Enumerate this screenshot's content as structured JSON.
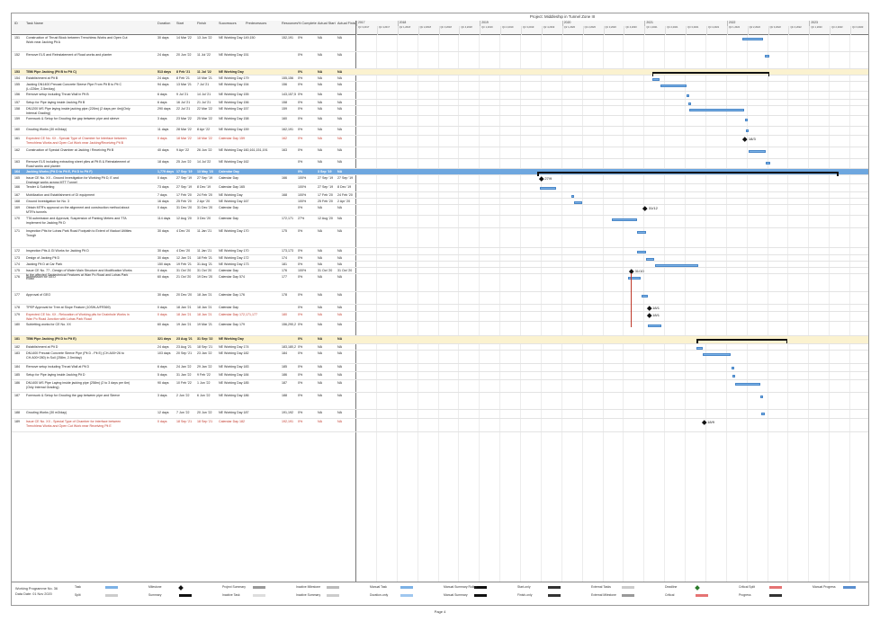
{
  "project_title": "Project: Middleship in Tunnel Zone III",
  "columns": [
    "ID",
    "Task Name",
    "Duration",
    "Start",
    "Finish",
    "Successors",
    "Predecessors",
    "Resources",
    "% Complete",
    "Actual Start",
    "Actual Finish"
  ],
  "timeline_years": [
    "2017",
    "2018",
    "2019",
    "2020",
    "2021",
    "2022",
    "2023"
  ],
  "quarters": [
    "Qtr 3,2017",
    "Qtr 4,2017",
    "Qtr 1,2018",
    "Qtr 2,2018",
    "Qtr 3,2018",
    "Qtr 4,2018",
    "Qtr 1,2019",
    "Qtr 2,2019",
    "Qtr 3,2019",
    "Qtr 4,2019",
    "Qtr 1,2020",
    "Qtr 2,2020",
    "Qtr 3,2020",
    "Qtr 4,2020",
    "Qtr 1,2021",
    "Qtr 2,2021",
    "Qtr 3,2021",
    "Qtr 4,2021",
    "Qtr 1,2022",
    "Qtr 2,2022",
    "Qtr 3,2022",
    "Qtr 4,2022",
    "Qtr 1,2023",
    "Qtr 2,2023",
    "Qtr 3,2023"
  ],
  "rows": [
    {
      "id": "151",
      "name": "Construction of Thrust Block between Trenchless Works and Open Cut Work near Jacking Pit A",
      "dur": "30 days",
      "start": "14 Mar '22",
      "finish": "13 Jun '22",
      "succ": "NE Working Day 149,150",
      "res": "152,191",
      "pct": "0%",
      "as": "NA",
      "af": "NA"
    },
    {
      "id": "152",
      "name": "Remove ELS and Reinstatement of Road works and planter",
      "dur": "24 days",
      "start": "20 Jun '22",
      "finish": "11 Jul '22",
      "succ": "NE Working Day 151",
      "res": "",
      "pct": "0%",
      "as": "NA",
      "af": "NA"
    },
    {
      "id": "153",
      "name": "TBM Pipe Jacking (Pit B to Pit C)",
      "dur": "513 days",
      "start": "8 Feb '21",
      "finish": "11 Jul '22",
      "succ": "NE Working Day",
      "res": "",
      "pct": "0%",
      "as": "NA",
      "af": "NA",
      "kind": "summary"
    },
    {
      "id": "154",
      "name": "Establishment at Pit B",
      "dur": "24 days",
      "start": "8 Feb '21",
      "finish": "10 Mar '21",
      "succ": "NE Working Day 179",
      "res": "155,156",
      "pct": "0%",
      "as": "NA",
      "af": "NA"
    },
    {
      "id": "155",
      "name": "Jacking DN1400 Precast Concrete Sleeve Pipe From Pit B to Pit C (L=226m; 2.5m/day)",
      "dur": "94 days",
      "start": "13 Mar '21",
      "finish": "7 Jul '21",
      "succ": "NE Working Day 154",
      "res": "156",
      "pct": "0%",
      "as": "NA",
      "af": "NA"
    },
    {
      "id": "156",
      "name": "Remove setup including Thrust Wall in Pit B",
      "dur": "6 days",
      "start": "9 Jul '21",
      "finish": "14 Jul '21",
      "succ": "NE Working Day 155",
      "res": "143,157,5",
      "pct": "0%",
      "as": "NA",
      "af": "NA"
    },
    {
      "id": "157",
      "name": "Setup for Pipe laying inside Jacking Pit B",
      "dur": "6 days",
      "start": "16 Jul '21",
      "finish": "21 Jul '21",
      "succ": "NE Working Day 156",
      "res": "158",
      "pct": "0%",
      "as": "NA",
      "af": "NA"
    },
    {
      "id": "158",
      "name": "DN1200 MS Pipe laying inside jacking pipe (226m) (2 days per 4m)(Only Internal Grading)",
      "dur": "290 days",
      "start": "22 Jul '21",
      "finish": "22 Mar '22",
      "succ": "NE Working Day 157",
      "res": "159",
      "pct": "0%",
      "as": "NA",
      "af": "NA"
    },
    {
      "id": "159",
      "name": "Formwork & Setup for Grouting the gap between pipe and sleeve",
      "dur": "3 days",
      "start": "23 Mar '22",
      "finish": "25 Mar '22",
      "succ": "NE Working Day 158",
      "res": "160",
      "pct": "0%",
      "as": "NA",
      "af": "NA"
    },
    {
      "id": "160",
      "name": "Grouting Works (30 m3/day)",
      "dur": "11 days",
      "start": "28 Mar '22",
      "finish": "8 Apr '22",
      "succ": "NE Working Day 159",
      "res": "162,191",
      "pct": "0%",
      "as": "NA",
      "af": "NA"
    },
    {
      "id": "161",
      "name": "Expected CE No. XX - Special Type of Chamber for Interface between Trenchless Works and Open Cut Work near Jacking/Receiving Pit B",
      "dur": "0 days",
      "start": "18 Mar '22",
      "finish": "18 Mar '22",
      "succ": "Calendar Day 159",
      "res": "162",
      "pct": "0%",
      "as": "NA",
      "af": "NA",
      "kind": "red"
    },
    {
      "id": "162",
      "name": "Construction of Special Chamber at Jacking / Receiving Pit B",
      "dur": "40 days",
      "start": "9 Apr '22",
      "finish": "26 Jun '22",
      "succ": "NE Working Day 160,161,151,191",
      "res": "163",
      "pct": "0%",
      "as": "NA",
      "af": "NA"
    },
    {
      "id": "163",
      "name": "Remove ELS including extracting sheet piles at Pit B & Reinstatement of Road works and planter",
      "dur": "18 days",
      "start": "25 Jun '22",
      "finish": "14 Jul '22",
      "succ": "NE Working Day 162",
      "res": "",
      "pct": "0%",
      "as": "NA",
      "af": "NA"
    },
    {
      "id": "164",
      "name": "Jacking Works (Pit D to Pit E, Pit D to Pit F)",
      "dur": "1,779 days",
      "start": "17 Sep '19",
      "finish": "13 May '23",
      "succ": "Calendar Day",
      "res": "",
      "pct": "0%",
      "as": "3 Sep '19",
      "af": "NA",
      "kind": "blue"
    },
    {
      "id": "165",
      "name": "Issue CE No. XX - Ground Investigation for Working Pit D, E and Drainage works across MTT Tunnel",
      "dur": "0 days",
      "start": "27 Sep '19",
      "finish": "27 Sep '19",
      "succ": "Calendar Day",
      "res": "166",
      "pct": "100%",
      "as": "27 Sep '19",
      "af": "27 Sep '19"
    },
    {
      "id": "166",
      "name": "Tender & Subletting",
      "dur": "73 days",
      "start": "27 Sep '19",
      "finish": "8 Dec '19",
      "succ": "Calendar Day 165",
      "res": "",
      "pct": "100%",
      "as": "27 Sep '19",
      "af": "8 Dec '19"
    },
    {
      "id": "167",
      "name": "Mobilization and Establishment of GI equipment",
      "dur": "7 days",
      "start": "17 Feb '20",
      "finish": "24 Feb '20",
      "succ": "NE Working Day",
      "res": "168",
      "pct": "100%",
      "as": "17 Feb '20",
      "af": "24 Feb '20"
    },
    {
      "id": "168",
      "name": "Ground Investigation for No. 3",
      "dur": "16 days",
      "start": "25 Feb '20",
      "finish": "2 Apr '20",
      "succ": "NE Working Day 167",
      "res": "",
      "pct": "100%",
      "as": "25 Feb '20",
      "af": "2 Apr '20"
    },
    {
      "id": "169",
      "name": "Obtain MTR's approval on the alignment and construction method about MTR's tunnels",
      "dur": "0 days",
      "start": "31 Dec '20",
      "finish": "31 Dec '20",
      "succ": "Calendar Day",
      "res": "",
      "pct": "0%",
      "as": "NA",
      "af": "NA"
    },
    {
      "id": "170",
      "name": "TTA submission and Approval, Suspension of Parking Meters and TTA implement for Jacking Pit D",
      "dur": "114 days",
      "start": "12 Aug '20",
      "finish": "3 Dec '20",
      "succ": "Calendar Day",
      "res": "172,171",
      "pct": "27%",
      "as": "12 Aug '20",
      "af": "NA"
    },
    {
      "id": "171",
      "name": "Inspection Pits for Lohas Park Road Footpath to Extent of Viaduct Utilities Trough",
      "dur": "30 days",
      "start": "4 Dec '20",
      "finish": "11 Jan '21",
      "succ": "NE Working Day 170",
      "res": "175",
      "pct": "0%",
      "as": "NA",
      "af": "NA"
    },
    {
      "id": "172",
      "name": "Inspection Pits & GI Works for Jacking Pit D",
      "dur": "30 days",
      "start": "4 Dec '20",
      "finish": "11 Jan '21",
      "succ": "NE Working Day 170",
      "res": "173,173",
      "pct": "0%",
      "as": "NA",
      "af": "NA"
    },
    {
      "id": "173",
      "name": "Design of Jacking Pit D",
      "dur": "30 days",
      "start": "12 Jan '21",
      "finish": "18 Feb '21",
      "succ": "NE Working Day 172",
      "res": "174",
      "pct": "0%",
      "as": "NA",
      "af": "NA"
    },
    {
      "id": "174",
      "name": "Jacking Pit D at Car Park",
      "dur": "150 days",
      "start": "19 Feb '21",
      "finish": "31 Aug '21",
      "succ": "NE Working Day 173",
      "res": "181",
      "pct": "0%",
      "as": "NA",
      "af": "NA"
    },
    {
      "id": "175",
      "name": "Issue CE No. 77 - Design of Water Main Structure and Modification Works to the affected Geotechnical Features at Wan Po Road and Lohas Park Road",
      "dur": "0 days",
      "start": "31 Oct '20",
      "finish": "31 Oct '20",
      "succ": "Calendar Day",
      "res": "176",
      "pct": "100%",
      "as": "31 Oct '20",
      "af": "31 Oct '20"
    },
    {
      "id": "176",
      "name": "Submission for GEO",
      "dur": "60 days",
      "start": "21 Oct '20",
      "finish": "19 Dec '20",
      "succ": "Calendar Day 574",
      "res": "177",
      "pct": "0%",
      "as": "NA",
      "af": "NA"
    },
    {
      "id": "177",
      "name": "Approval of GEO",
      "dur": "30 days",
      "start": "20 Dec '20",
      "finish": "18 Jan '21",
      "succ": "Calendar Day 176",
      "res": "178",
      "pct": "0%",
      "as": "NA",
      "af": "NA"
    },
    {
      "id": "178",
      "name": "TPEP Approval for Tree at Slope Feature (10SW-A/FR369)",
      "dur": "0 days",
      "start": "18 Jan '21",
      "finish": "18 Jan '21",
      "succ": "Calendar Day",
      "res": "",
      "pct": "0%",
      "as": "NA",
      "af": "NA"
    },
    {
      "id": "179",
      "name": "Expected CE No. XX - Relocation of Working pits for Drainhole Works in Wan Po Road Junction with Lohas Park Road",
      "dur": "0 days",
      "start": "18 Jan '21",
      "finish": "18 Jan '21",
      "succ": "Calendar Day 172,171,177",
      "res": "180",
      "pct": "0%",
      "as": "NA",
      "af": "NA",
      "kind": "red"
    },
    {
      "id": "180",
      "name": "Subletting works for CE No. XX",
      "dur": "60 days",
      "start": "19 Jan '21",
      "finish": "19 Mar '21",
      "succ": "Calendar Day 179",
      "res": "156,290,2",
      "pct": "0%",
      "as": "NA",
      "af": "NA"
    },
    {
      "id": "181",
      "name": "TBM Pipe Jacking (Pit D to Pit E)",
      "dur": "321 days",
      "start": "23 Aug '21",
      "finish": "31 Sep '22",
      "succ": "NE Working Day",
      "res": "",
      "pct": "0%",
      "as": "NA",
      "af": "NA",
      "kind": "summary"
    },
    {
      "id": "182",
      "name": "Establishment at Pit D",
      "dur": "24 days",
      "start": "23 Aug '21",
      "finish": "18 Sep '21",
      "succ": "NE Working Day 174",
      "res": "183,180,2",
      "pct": "0%",
      "as": "NA",
      "af": "NA"
    },
    {
      "id": "183",
      "name": "DN1400 Precast Concrete Sleeve Pipe (Pit D - Pit E) (CH.A00+26 to CH.A00+280) in Soil (258m, 2.5m/day)",
      "dur": "103 days",
      "start": "20 Sep '21",
      "finish": "23 Jan '22",
      "succ": "NE Working Day 182",
      "res": "184",
      "pct": "0%",
      "as": "NA",
      "af": "NA"
    },
    {
      "id": "184",
      "name": "Remove setup including Thrust Wall at Pit D",
      "dur": "6 days",
      "start": "24 Jan '22",
      "finish": "29 Jan '22",
      "succ": "NE Working Day 183",
      "res": "185",
      "pct": "0%",
      "as": "NA",
      "af": "NA"
    },
    {
      "id": "185",
      "name": "Setup for Pipe laying inside Jacking Pit D",
      "dur": "5 days",
      "start": "31 Jan '22",
      "finish": "9 Feb '22",
      "succ": "NE Working Day 184",
      "res": "186",
      "pct": "0%",
      "as": "NA",
      "af": "NA"
    },
    {
      "id": "186",
      "name": "DN1400 MS Pipe Laying inside jacking pipe (258m) (2 to 3 days per 6m)(Only Internal Grading)",
      "dur": "90 days",
      "start": "10 Feb '22",
      "finish": "1 Jun '22",
      "succ": "NE Working Day 185",
      "res": "187",
      "pct": "0%",
      "as": "NA",
      "af": "NA"
    },
    {
      "id": "187",
      "name": "Formwork & Setup for Grouting the gap between pipe and Sleeve",
      "dur": "3 days",
      "start": "2 Jun '22",
      "finish": "6 Jun '22",
      "succ": "NE Working Day 186",
      "res": "188",
      "pct": "0%",
      "as": "NA",
      "af": "NA"
    },
    {
      "id": "188",
      "name": "Grouting Works (30 m3/day)",
      "dur": "12 days",
      "start": "7 Jun '22",
      "finish": "20 Jun '22",
      "succ": "NE Working Day 187",
      "res": "191,192",
      "pct": "0%",
      "as": "NA",
      "af": "NA"
    },
    {
      "id": "189",
      "name": "Issue CE No. XX - Special Type of Chamber for Interface between Trenchless Works and Open Cut Work near Receiving Pit E",
      "dur": "0 days",
      "start": "18 Sep '21",
      "finish": "18 Sep '21",
      "succ": "Calendar Day 182",
      "res": "192,191",
      "pct": "0%",
      "as": "NA",
      "af": "NA",
      "kind": "red"
    }
  ],
  "milestones": [
    {
      "row": "161",
      "label": "18/3"
    },
    {
      "row": "165",
      "label": "27/9"
    },
    {
      "row": "169",
      "label": "31/12"
    },
    {
      "row": "175",
      "label": "31/10"
    },
    {
      "row": "178",
      "label": "18/1"
    },
    {
      "row": "179",
      "label": "18/1"
    },
    {
      "row": "189",
      "label": "18/9"
    }
  ],
  "footer": {
    "program": "Working Programme No. 36",
    "data_date": "Data Date: 01 Nov 2020",
    "legend": [
      "Task",
      "Split",
      "Milestone",
      "Summary",
      "Project Summary",
      "Inactive Task",
      "Inactive Milestone",
      "Inactive Summary",
      "Manual Task",
      "Duration-only",
      "Manual Summary Rollup",
      "Manual Summary",
      "Start-only",
      "Finish-only",
      "External Tasks",
      "External Milestone",
      "Deadline",
      "Critical",
      "Critical Split",
      "Progress",
      "Manual Progress"
    ]
  },
  "page_label": "Page 4",
  "colors": {
    "task_bar": "#7cb2e6",
    "summary_row": "#fbf2cf",
    "highlight_row": "#6ea7df",
    "critical_text": "#c0392b"
  }
}
